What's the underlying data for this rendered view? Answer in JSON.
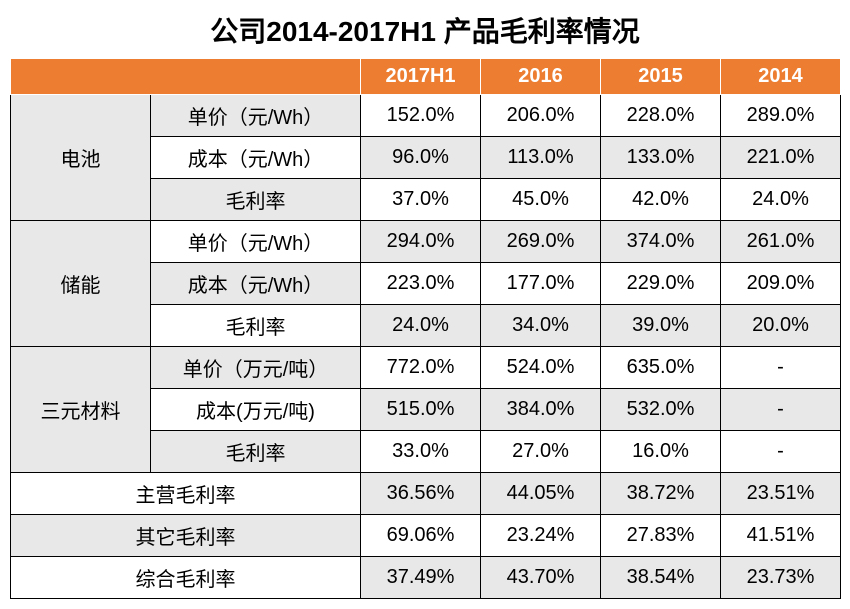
{
  "title": "公司2014-2017H1 产品毛利率情况",
  "headers": [
    "2017H1",
    "2016",
    "2015",
    "2014"
  ],
  "groups": [
    {
      "name": "电池",
      "rows": [
        {
          "metric": "单价（元/Wh）",
          "vals": [
            "152.0%",
            "206.0%",
            "228.0%",
            "289.0%"
          ]
        },
        {
          "metric": "成本（元/Wh）",
          "vals": [
            "96.0%",
            "113.0%",
            "133.0%",
            "221.0%"
          ]
        },
        {
          "metric": "毛利率",
          "vals": [
            "37.0%",
            "45.0%",
            "42.0%",
            "24.0%"
          ]
        }
      ]
    },
    {
      "name": "储能",
      "rows": [
        {
          "metric": "单价（元/Wh）",
          "vals": [
            "294.0%",
            "269.0%",
            "374.0%",
            "261.0%"
          ]
        },
        {
          "metric": "成本（元/Wh）",
          "vals": [
            "223.0%",
            "177.0%",
            "229.0%",
            "209.0%"
          ]
        },
        {
          "metric": "毛利率",
          "vals": [
            "24.0%",
            "34.0%",
            "39.0%",
            "20.0%"
          ]
        }
      ]
    },
    {
      "name": "三元材料",
      "rows": [
        {
          "metric": "单价（万元/吨）",
          "vals": [
            "772.0%",
            "524.0%",
            "635.0%",
            "-"
          ]
        },
        {
          "metric": "成本(万元/吨)",
          "vals": [
            "515.0%",
            "384.0%",
            "532.0%",
            "-"
          ]
        },
        {
          "metric": "毛利率",
          "vals": [
            "33.0%",
            "27.0%",
            "16.0%",
            "-"
          ]
        }
      ]
    }
  ],
  "summary": [
    {
      "metric": "主营毛利率",
      "vals": [
        "36.56%",
        "44.05%",
        "38.72%",
        "23.51%"
      ]
    },
    {
      "metric": "其它毛利率",
      "vals": [
        "69.06%",
        "23.24%",
        "27.83%",
        "41.51%"
      ]
    },
    {
      "metric": "综合毛利率",
      "vals": [
        "37.49%",
        "43.70%",
        "38.54%",
        "23.73%"
      ]
    }
  ],
  "colors": {
    "header_bg": "#ec7d31",
    "header_fg": "#ffffff",
    "shade_bg": "#e8e8e8",
    "border": "#000000"
  }
}
